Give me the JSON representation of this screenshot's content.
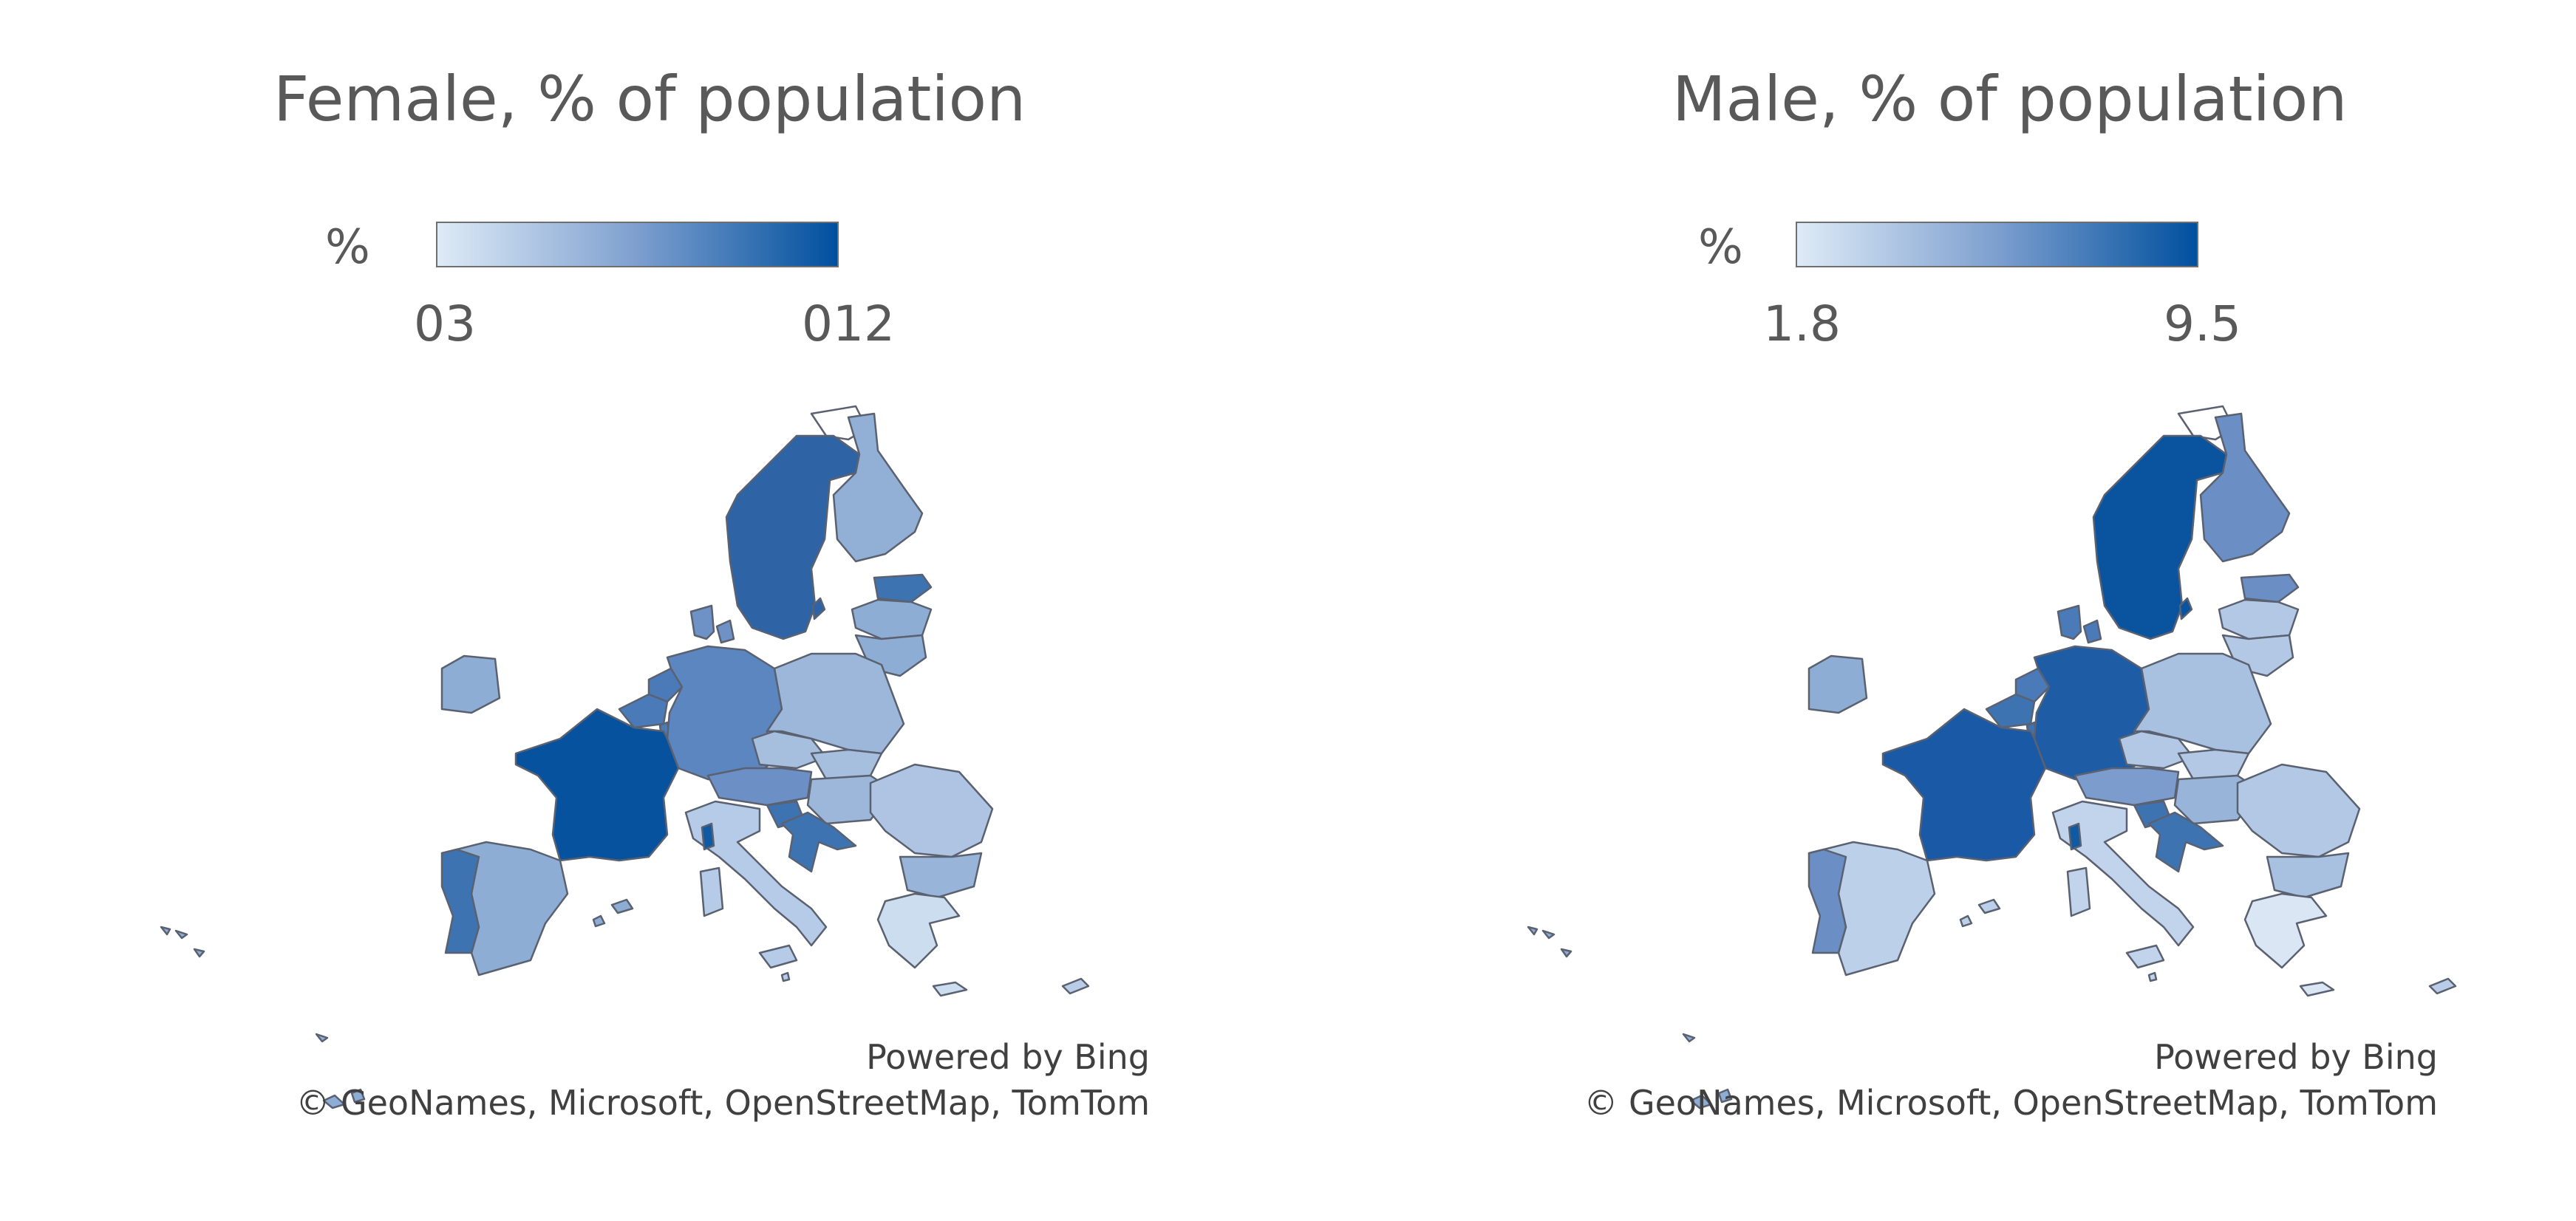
{
  "legend_unit": "%",
  "scale_colors": {
    "low": "#deebf7",
    "mid": "#7d9fcf",
    "high": "#00509e"
  },
  "credits": {
    "powered": "Powered by Bing",
    "copyright": "© GeoNames, Microsoft, OpenStreetMap, TomTom"
  },
  "maps": [
    {
      "title": "Female, % of population",
      "legend_min": "03",
      "legend_max": "012",
      "region_colors": {
        "sweden": "#2e64a5",
        "finland": "#92b0d6",
        "norway": "#ffffff",
        "estonia": "#3e73b2",
        "latvia": "#8eadd5",
        "lithuania": "#8eadd5",
        "denmark": "#6e92c6",
        "ireland": "#8eadd5",
        "netherlands": "#4a7bb8",
        "belgium": "#4a7bb8",
        "luxembourg": "#4a7bb8",
        "germany": "#5c86bf",
        "poland": "#9cb7da",
        "czechia": "#a7bfde",
        "slovakia": "#a7bfde",
        "austria": "#6c8fc5",
        "hungary": "#9cb7da",
        "slovenia": "#3e73b2",
        "croatia": "#3e73b2",
        "romania": "#aec4e2",
        "bulgaria": "#98b4d9",
        "greece": "#cdddf0",
        "cyprus": "#b9cde8",
        "italy": "#b6cbe7",
        "sicily": "#b6cbe7",
        "sardinia": "#b6cbe7",
        "corsica": "#0f5aa3",
        "malta": "#b6cbe7",
        "france": "#06529f",
        "spain": "#8eadd5",
        "portugal": "#3e73b2",
        "balearics": "#8eadd5",
        "outlying": "#8eadd5"
      }
    },
    {
      "title": "Male, % of population",
      "legend_min": "1.8",
      "legend_max": "9.5",
      "region_colors": {
        "sweden": "#0a549f",
        "finland": "#6b8fc5",
        "norway": "#ffffff",
        "estonia": "#6b8fc5",
        "latvia": "#b3c8e5",
        "lithuania": "#b3c8e5",
        "denmark": "#4a7bb8",
        "ireland": "#8eadd5",
        "netherlands": "#4a7bb8",
        "belgium": "#3e73b2",
        "luxembourg": "#3e73b2",
        "germany": "#1e5ca6",
        "poland": "#a9c1e0",
        "czechia": "#b3c8e5",
        "slovakia": "#b3c8e5",
        "austria": "#7c9ccd",
        "hungary": "#98b4d9",
        "slovenia": "#3e73b2",
        "croatia": "#3e73b2",
        "romania": "#b3c8e5",
        "bulgaria": "#a9c1e0",
        "greece": "#dbe6f4",
        "cyprus": "#b9cde8",
        "italy": "#c2d3ec",
        "sicily": "#c2d3ec",
        "sardinia": "#c2d3ec",
        "corsica": "#0f5aa3",
        "malta": "#c2d3ec",
        "france": "#1a59a5",
        "spain": "#bdd0ea",
        "portugal": "#6b8fc5",
        "balearics": "#bdd0ea",
        "outlying": "#8eadd5"
      }
    }
  ]
}
